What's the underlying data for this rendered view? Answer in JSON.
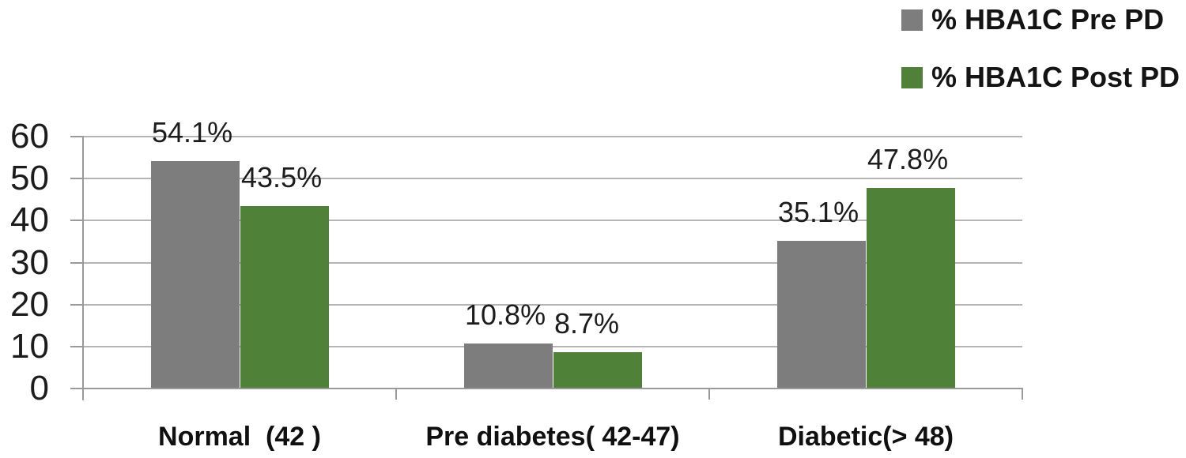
{
  "chart_data": {
    "type": "bar",
    "title": "",
    "categories": [
      "Normal  (42 )",
      "Pre diabetes( 42-47)",
      "Diabetic(> 48)"
    ],
    "series": [
      {
        "name": "% HBA1C Pre PD",
        "color": "#7d7d7d",
        "values": [
          54.1,
          10.8,
          35.1
        ],
        "data_labels": [
          "54.1%",
          "10.8%",
          "35.1%"
        ]
      },
      {
        "name": "% HBA1C Post PD",
        "color": "#4f8138",
        "values": [
          43.5,
          8.7,
          47.8
        ],
        "data_labels": [
          "43.5%",
          "8.7%",
          "47.8%"
        ]
      }
    ],
    "xlabel": "",
    "ylabel": "",
    "ylim": [
      0,
      60
    ],
    "yticks": [
      0,
      10,
      20,
      30,
      40,
      50,
      60
    ],
    "grid": true,
    "legend_position": "top-right"
  },
  "colors": {
    "gridline": "#b4b4b4",
    "axis": "#9a9a9a",
    "text": "#1c1c1c"
  }
}
